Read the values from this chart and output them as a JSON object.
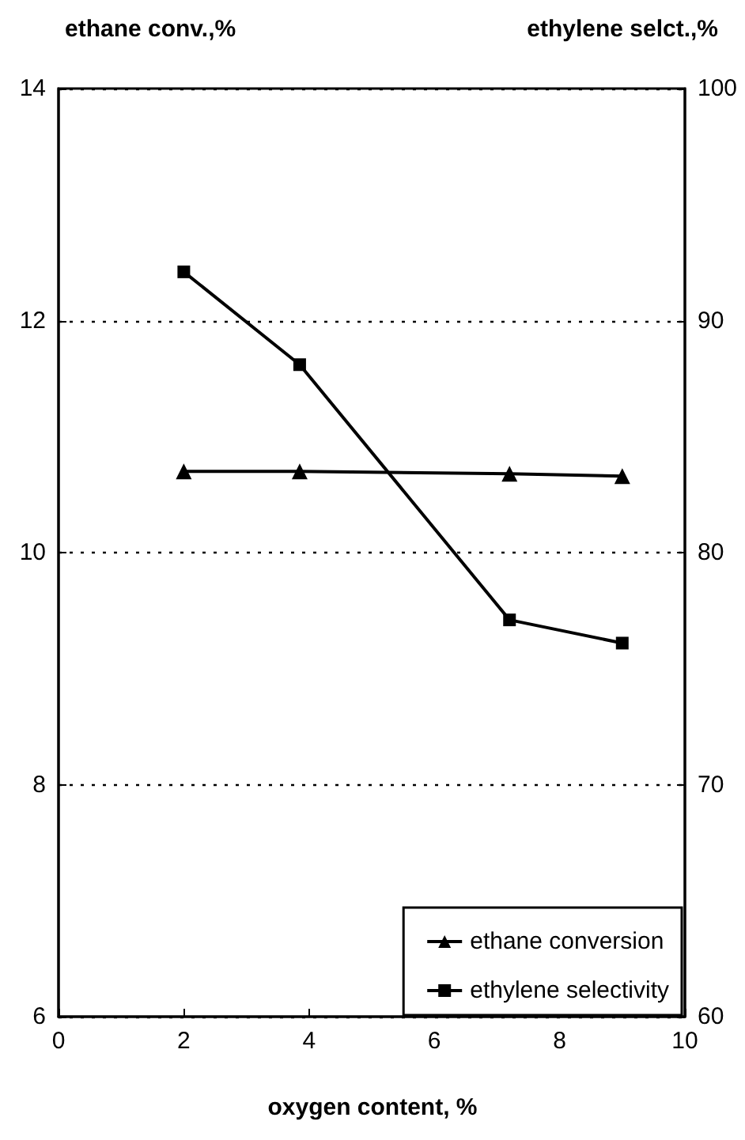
{
  "chart_data": {
    "type": "line",
    "ylabel": "ethane conv.,%",
    "y2label": "ethylene selct.,%",
    "xlabel": "oxygen content, %",
    "x": [
      2,
      3.85,
      7.2,
      9
    ],
    "series": [
      {
        "name": "ethane conversion",
        "color": "#000000",
        "values": [
          10.7,
          10.7,
          10.68,
          10.66
        ],
        "marker": "triangle"
      },
      {
        "name": "ethylene selectivity",
        "color": "#000000",
        "values": [
          92.1,
          88.1,
          77.1,
          76.1
        ],
        "axis": "y2",
        "marker": "square"
      }
    ],
    "xlim": [
      0,
      10
    ],
    "xticks": [
      0,
      2,
      4,
      6,
      8,
      10
    ],
    "ylim": [
      6,
      14
    ],
    "yticks": [
      6,
      8,
      10,
      12,
      14
    ],
    "y2lim": [
      60,
      100
    ],
    "y2ticks": [
      60,
      70,
      80,
      90,
      100
    ],
    "grid": "y",
    "legend": "bottom right",
    "line_style": "solid"
  }
}
